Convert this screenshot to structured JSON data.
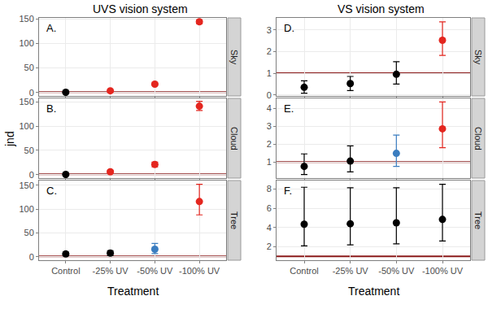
{
  "figure": {
    "titles": [
      "UVS vision system",
      "VS vision system"
    ],
    "x_label": "Treatment",
    "y_label": "jnd"
  },
  "chart_data": [
    {
      "type": "scatter",
      "panel": "A.",
      "facet": "Sky",
      "marker": "circle",
      "grid": true,
      "tick_labels": "y",
      "categories": [
        "Control",
        "-25% UV",
        "-50% UV",
        "-100% UV"
      ],
      "values": [
        0.5,
        3.5,
        17,
        144
      ],
      "error_minus": [
        1,
        1.5,
        2,
        4
      ],
      "error_plus": [
        1,
        1.5,
        2,
        4
      ],
      "colors": [
        "#000000",
        "#e4261f",
        "#e4261f",
        "#e4261f"
      ],
      "reference_line": 1,
      "ylim": [
        -7,
        152
      ],
      "yticks": [
        0,
        50,
        100,
        150
      ]
    },
    {
      "type": "scatter",
      "panel": "B.",
      "facet": "Cloud",
      "marker": "circle",
      "grid": true,
      "tick_labels": "y",
      "categories": [
        "Control",
        "-25% UV",
        "-50% UV",
        "-100% UV"
      ],
      "values": [
        0.5,
        6,
        21,
        141
      ],
      "error_minus": [
        1,
        3,
        5,
        9
      ],
      "error_plus": [
        1,
        3,
        5,
        10
      ],
      "colors": [
        "#000000",
        "#e4261f",
        "#e4261f",
        "#e4261f"
      ],
      "reference_line": 1,
      "ylim": [
        -7,
        157
      ],
      "yticks": [
        0,
        50,
        100,
        150
      ]
    },
    {
      "type": "scatter",
      "panel": "C.",
      "facet": "Tree",
      "marker": "circle",
      "grid": true,
      "tick_labels": true,
      "categories": [
        "Control",
        "-25% UV",
        "-50% UV",
        "-100% UV"
      ],
      "values": [
        6,
        8,
        16,
        116
      ],
      "error_minus": [
        4,
        5,
        9,
        28
      ],
      "error_plus": [
        4,
        5,
        12,
        36
      ],
      "colors": [
        "#000000",
        "#000000",
        "#3a7dc0",
        "#e4261f"
      ],
      "reference_line": 1,
      "ylim": [
        -7,
        160
      ],
      "yticks": [
        0,
        50,
        100,
        150
      ]
    },
    {
      "type": "scatter",
      "panel": "D.",
      "facet": "Sky",
      "marker": "circle",
      "grid": true,
      "tick_labels": "y",
      "categories": [
        "Control",
        "-25% UV",
        "-50% UV",
        "-100% UV"
      ],
      "values": [
        0.35,
        0.52,
        0.95,
        2.52
      ],
      "error_minus": [
        0.27,
        0.32,
        0.45,
        0.7
      ],
      "error_plus": [
        0.3,
        0.33,
        0.58,
        0.85
      ],
      "colors": [
        "#000000",
        "#000000",
        "#000000",
        "#e4261f"
      ],
      "reference_line": 1,
      "ylim": [
        -0.05,
        3.55
      ],
      "yticks": [
        0,
        1,
        2,
        3
      ]
    },
    {
      "type": "scatter",
      "panel": "E.",
      "facet": "Cloud",
      "marker": "circle",
      "grid": true,
      "tick_labels": "y",
      "categories": [
        "Control",
        "-25% UV",
        "-50% UV",
        "-100% UV"
      ],
      "values": [
        0.75,
        1.05,
        1.48,
        2.85
      ],
      "error_minus": [
        0.45,
        0.6,
        0.73,
        1.05
      ],
      "error_plus": [
        0.7,
        0.85,
        1.02,
        1.5
      ],
      "colors": [
        "#000000",
        "#000000",
        "#3a7dc0",
        "#e4261f"
      ],
      "reference_line": 1,
      "ylim": [
        0.1,
        4.55
      ],
      "yticks": [
        1,
        2,
        3,
        4
      ]
    },
    {
      "type": "scatter",
      "panel": "F.",
      "facet": "Tree",
      "marker": "circle",
      "grid": true,
      "tick_labels": true,
      "categories": [
        "Control",
        "-25% UV",
        "-50% UV",
        "-100% UV"
      ],
      "values": [
        4.35,
        4.4,
        4.5,
        4.85
      ],
      "error_minus": [
        2.25,
        2.2,
        2.2,
        2.25
      ],
      "error_plus": [
        3.85,
        3.75,
        3.65,
        3.65
      ],
      "colors": [
        "#000000",
        "#000000",
        "#000000",
        "#000000"
      ],
      "reference_line": 1,
      "ylim": [
        0.6,
        8.9
      ],
      "yticks": [
        2,
        4,
        6,
        8
      ]
    }
  ]
}
